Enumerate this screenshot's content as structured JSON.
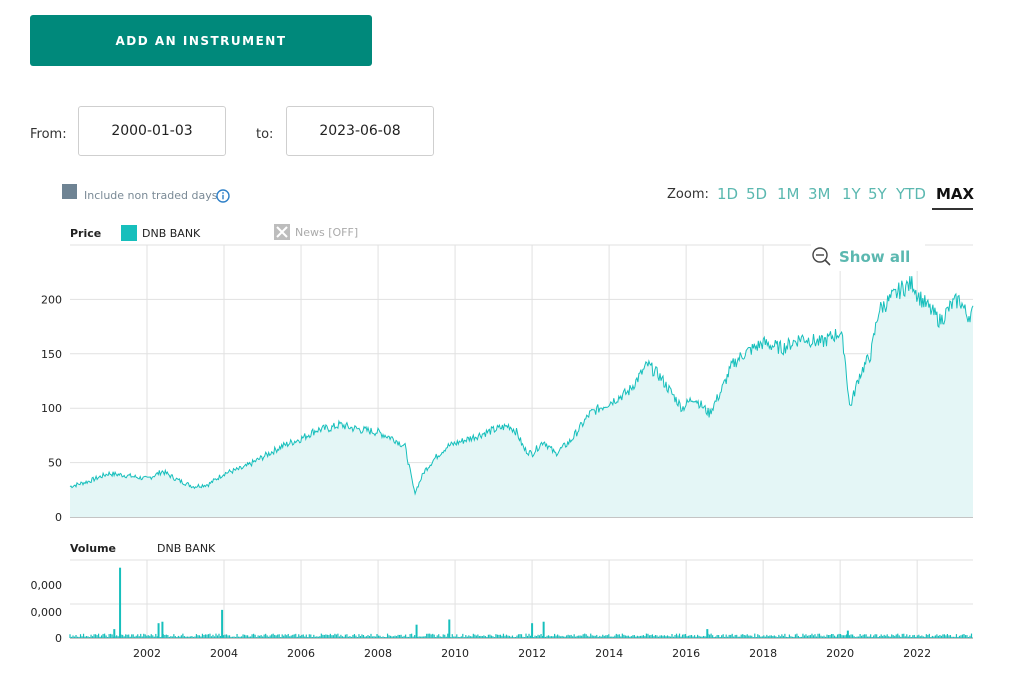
{
  "toolbar": {
    "add_label": "ADD AN INSTRUMENT"
  },
  "range": {
    "from_label": "From:",
    "from_value": "2000-01-03",
    "to_label": "to:",
    "to_value": "2023-06-08"
  },
  "options": {
    "non_traded_label": "Include non traded days",
    "checkbox_color": "#6e8393"
  },
  "zoom": {
    "label": "Zoom:",
    "buttons": [
      "1D",
      "5D",
      "1M",
      "3M",
      "1Y",
      "5Y",
      "YTD",
      "MAX"
    ],
    "active": "MAX"
  },
  "legend": {
    "price_title": "Price",
    "series_name": "DNB BANK",
    "news_label": "News [OFF]",
    "volume_title": "Volume",
    "volume_series": "DNB BANK"
  },
  "show_all_label": "Show all",
  "colors": {
    "accent": "#00897b",
    "series": "#17bfbc",
    "fill": "#e4f6f6",
    "zoom_text": "#5bb8b0"
  },
  "chart_data": [
    {
      "type": "area",
      "series_name": "DNB BANK",
      "xlabel": "",
      "ylabel": "",
      "ylim": [
        0,
        250
      ],
      "yticks": [
        0,
        50,
        100,
        150,
        200
      ],
      "xlim": [
        2000.0,
        2023.45
      ],
      "xticks": [
        2002,
        2004,
        2006,
        2008,
        2010,
        2012,
        2014,
        2016,
        2018,
        2020,
        2022
      ],
      "grid": true,
      "x": [
        2000.0,
        2000.5,
        2001.0,
        2001.5,
        2002.0,
        2002.4,
        2002.8,
        2003.2,
        2003.6,
        2004.0,
        2004.5,
        2005.0,
        2005.5,
        2006.0,
        2006.4,
        2006.8,
        2007.0,
        2007.3,
        2007.6,
        2008.0,
        2008.4,
        2008.7,
        2008.95,
        2009.2,
        2009.5,
        2009.8,
        2010.2,
        2010.6,
        2011.0,
        2011.4,
        2011.6,
        2011.8,
        2012.0,
        2012.3,
        2012.6,
        2013.0,
        2013.5,
        2014.0,
        2014.5,
        2015.0,
        2015.3,
        2015.6,
        2015.9,
        2016.2,
        2016.6,
        2016.9,
        2017.2,
        2017.5,
        2018.0,
        2018.5,
        2019.0,
        2019.5,
        2020.0,
        2020.1,
        2020.25,
        2020.5,
        2020.8,
        2021.0,
        2021.3,
        2021.6,
        2021.9,
        2022.0,
        2022.3,
        2022.6,
        2022.9,
        2023.1,
        2023.3,
        2023.45
      ],
      "values": [
        28,
        33,
        40,
        38,
        35,
        42,
        34,
        28,
        30,
        40,
        45,
        55,
        65,
        72,
        80,
        82,
        85,
        82,
        80,
        78,
        72,
        65,
        22,
        42,
        55,
        65,
        70,
        75,
        80,
        84,
        78,
        62,
        58,
        70,
        58,
        70,
        95,
        105,
        115,
        140,
        130,
        115,
        100,
        110,
        95,
        115,
        140,
        150,
        160,
        155,
        165,
        160,
        170,
        155,
        100,
        130,
        150,
        190,
        200,
        210,
        215,
        205,
        192,
        180,
        195,
        200,
        185,
        188
      ]
    },
    {
      "type": "bar",
      "series_name": "DNB BANK",
      "yticks": [
        "0",
        "0,000",
        "0,000"
      ],
      "grid": true,
      "spikes": [
        {
          "x": 2001.3,
          "value": 0.95
        },
        {
          "x": 2001.15,
          "value": 0.12
        },
        {
          "x": 2002.3,
          "value": 0.2
        },
        {
          "x": 2002.4,
          "value": 0.22
        },
        {
          "x": 2003.95,
          "value": 0.38
        },
        {
          "x": 2009.0,
          "value": 0.18
        },
        {
          "x": 2009.85,
          "value": 0.25
        },
        {
          "x": 2012.0,
          "value": 0.2
        },
        {
          "x": 2012.3,
          "value": 0.22
        },
        {
          "x": 2016.55,
          "value": 0.12
        },
        {
          "x": 2020.2,
          "value": 0.1
        }
      ],
      "baseline_level": 0.04
    }
  ]
}
